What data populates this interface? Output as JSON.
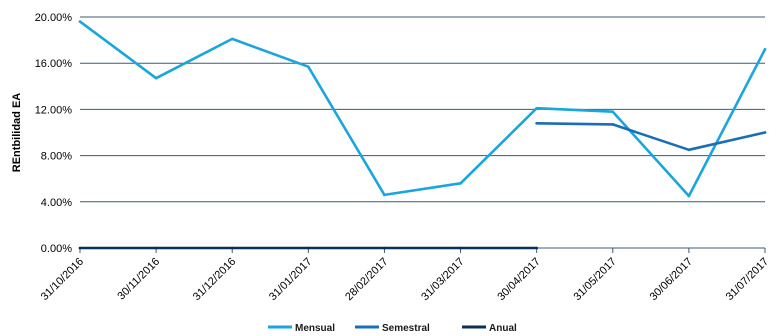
{
  "chart_data": {
    "type": "line",
    "title": "",
    "xlabel": "",
    "ylabel": "REntbilidad EA",
    "categories": [
      "31/10/2016",
      "30/11/2016",
      "31/12/2016",
      "31/01/2017",
      "28/02/2017",
      "31/03/2017",
      "30/04/2017",
      "31/05/2017",
      "30/06/2017",
      "31/07/2017"
    ],
    "y_ticks": [
      "0.00%",
      "4.00%",
      "8.00%",
      "12.00%",
      "16.00%",
      "20.00%"
    ],
    "y_tick_values": [
      0,
      4,
      8,
      12,
      16,
      20
    ],
    "ylim": [
      0,
      20
    ],
    "grid": "horizontal",
    "legend_position": "bottom",
    "series": [
      {
        "name": "Mensual",
        "color": "#1aa6dc",
        "values": [
          19.6,
          14.7,
          18.1,
          15.7,
          4.6,
          5.6,
          12.1,
          11.8,
          4.5,
          17.2
        ]
      },
      {
        "name": "Semestral",
        "color": "#1b6eb5",
        "values": [
          null,
          null,
          null,
          null,
          null,
          null,
          10.8,
          10.7,
          8.5,
          10.0
        ]
      },
      {
        "name": "Anual",
        "color": "#0b2f56",
        "values": [
          0,
          0,
          0,
          0,
          0,
          0,
          0,
          null,
          null,
          null
        ]
      }
    ]
  }
}
